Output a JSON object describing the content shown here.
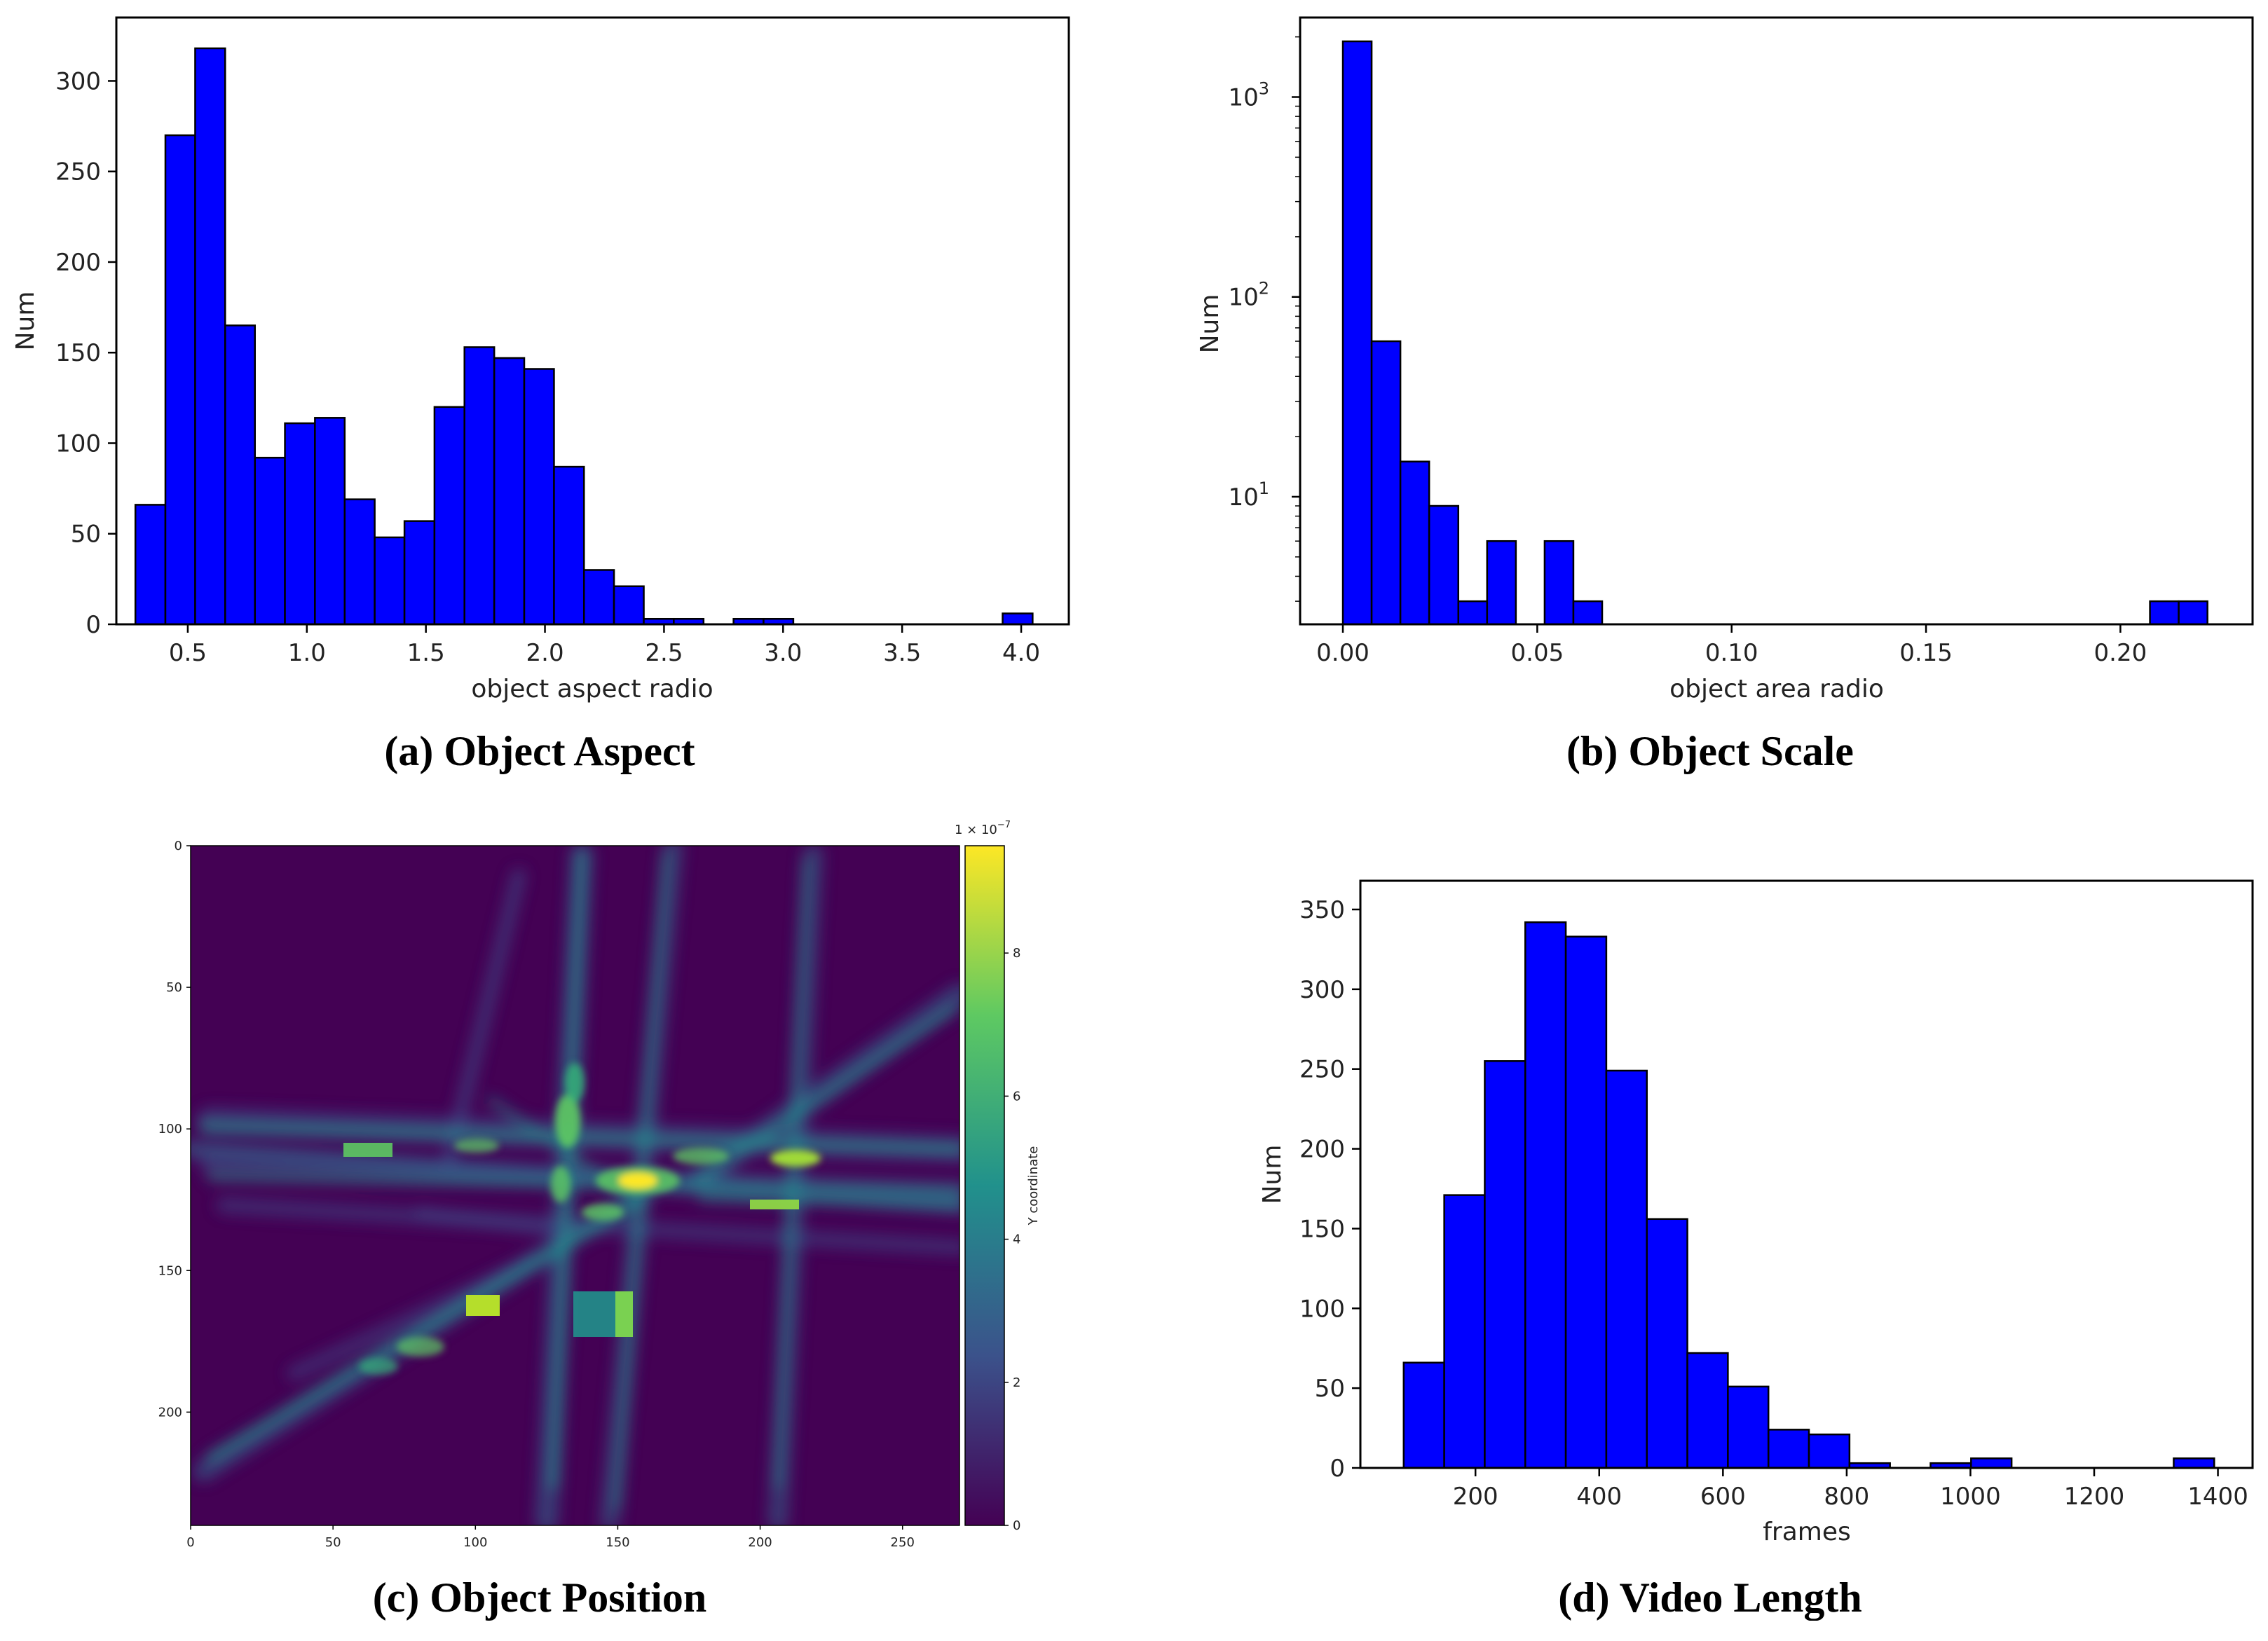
{
  "chart_data": [
    {
      "id": "a",
      "type": "bar",
      "caption": "(a)  Object Aspect",
      "xlabel": "object aspect radio",
      "ylabel": "Num",
      "bar_color": "#0000ff",
      "xlim": [
        0.2,
        4.2
      ],
      "ylim": [
        0,
        335
      ],
      "xticks": [
        0.5,
        1.0,
        1.5,
        2.0,
        2.5,
        3.0,
        3.5,
        4.0
      ],
      "xtick_labels": [
        "0.5",
        "1.0",
        "1.5",
        "2.0",
        "2.5",
        "3.0",
        "3.5",
        "4.0"
      ],
      "yticks": [
        0,
        50,
        100,
        150,
        200,
        250,
        300
      ],
      "ytick_labels": [
        "0",
        "50",
        "100",
        "150",
        "200",
        "250",
        "300"
      ],
      "bin_edges": [
        0.28,
        0.406,
        0.531,
        0.657,
        0.782,
        0.908,
        1.034,
        1.159,
        1.285,
        1.41,
        1.536,
        1.662,
        1.787,
        1.913,
        2.038,
        2.164,
        2.29,
        2.415,
        2.541,
        2.666,
        2.792,
        2.918,
        3.043,
        3.169,
        3.294,
        3.42,
        3.546,
        3.671,
        3.797,
        3.922,
        4.048
      ],
      "values": [
        66,
        270,
        318,
        165,
        92,
        111,
        114,
        69,
        48,
        57,
        120,
        153,
        147,
        141,
        87,
        30,
        21,
        3,
        3,
        0,
        3,
        3,
        0,
        0,
        0,
        0,
        0,
        0,
        0,
        6
      ]
    },
    {
      "id": "b",
      "type": "bar",
      "caption": "(b)  Object Scale",
      "xlabel": "object area radio",
      "ylabel": "Num",
      "yscale": "log",
      "bar_color": "#0000ff",
      "xlim": [
        -0.011,
        0.234
      ],
      "ylim": [
        2.3,
        2500
      ],
      "xticks": [
        0.0,
        0.05,
        0.1,
        0.15,
        0.2
      ],
      "xtick_labels": [
        "0.00",
        "0.05",
        "0.10",
        "0.15",
        "0.20"
      ],
      "yticks": [
        10,
        100,
        1000
      ],
      "ytick_labels": [
        "10",
        "10",
        "10"
      ],
      "ytick_exponents": [
        "1",
        "2",
        "3"
      ],
      "bin_edges": [
        0.0,
        0.0074,
        0.0148,
        0.0222,
        0.0297,
        0.0371,
        0.0445,
        0.0519,
        0.0593,
        0.0667,
        0.0741,
        0.0815,
        0.089,
        0.0964,
        0.1038,
        0.1112,
        0.1186,
        0.126,
        0.1334,
        0.1408,
        0.1483,
        0.1557,
        0.1631,
        0.1705,
        0.1779,
        0.1853,
        0.1927,
        0.2001,
        0.2076,
        0.215,
        0.2224
      ],
      "values": [
        1900,
        60,
        15,
        9,
        3,
        6,
        0,
        6,
        3,
        0,
        0,
        0,
        0,
        0,
        0,
        0,
        0,
        0,
        0,
        0,
        0,
        0,
        0,
        0,
        0,
        0,
        0,
        0,
        3,
        3
      ]
    },
    {
      "id": "c",
      "type": "heatmap",
      "caption": "(c) Object Position",
      "colorbar_label": "Y coordinate",
      "colorbar_scale": "1 × 10",
      "colorbar_exponent": "−7",
      "colorbar_range": [
        0,
        9.5
      ],
      "colorbar_ticks": [
        "0",
        "2",
        "4",
        "6",
        "8"
      ],
      "colormap": [
        "#440154",
        "#3b528b",
        "#21918c",
        "#5ec962",
        "#fde725"
      ],
      "xlim": [
        0,
        270
      ],
      "ylim": [
        0,
        240
      ],
      "xtick_labels": [
        "0",
        "50",
        "100",
        "150",
        "200",
        "250"
      ],
      "ytick_labels": [
        "0",
        "50",
        "100",
        "150",
        "200"
      ]
    },
    {
      "id": "d",
      "type": "bar",
      "caption": "(d) Video Length",
      "xlabel": "frames",
      "ylabel": "Num",
      "bar_color": "#0000ff",
      "xlim": [
        14,
        1456
      ],
      "ylim": [
        0,
        368
      ],
      "xticks": [
        200,
        400,
        600,
        800,
        1000,
        1200,
        1400
      ],
      "xtick_labels": [
        "200",
        "400",
        "600",
        "800",
        "1000",
        "1200",
        "1400"
      ],
      "yticks": [
        0,
        50,
        100,
        150,
        200,
        250,
        300,
        350
      ],
      "ytick_labels": [
        "0",
        "50",
        "100",
        "150",
        "200",
        "250",
        "300",
        "350"
      ],
      "bin_edges": [
        84,
        149.5,
        215,
        280.5,
        346,
        411.5,
        477,
        542.5,
        608,
        673.5,
        739,
        804.5,
        870,
        935.5,
        1001,
        1066.5,
        1132,
        1197.5,
        1263,
        1328.5,
        1394
      ],
      "values": [
        66,
        171,
        255,
        342,
        333,
        249,
        156,
        72,
        51,
        24,
        21,
        3,
        0,
        3,
        6,
        0,
        0,
        0,
        0,
        6
      ]
    }
  ]
}
